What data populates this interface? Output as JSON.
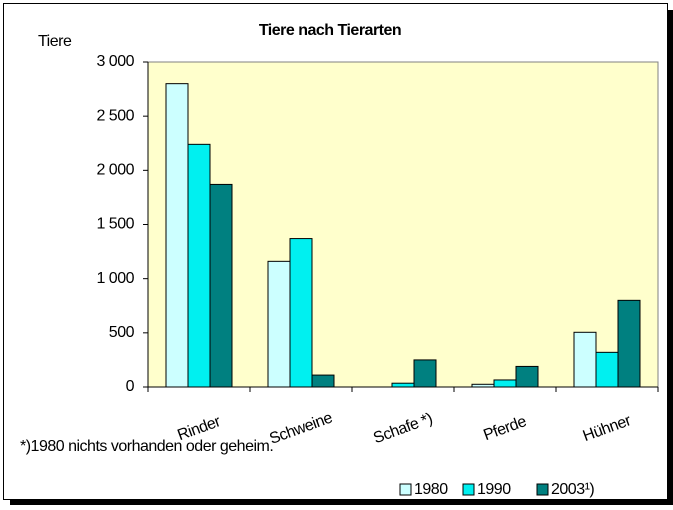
{
  "chart_data": {
    "type": "bar",
    "title": "Tiere nach Tierarten",
    "y_label": "Tiere",
    "note": "*)1980 nichts vorhanden oder geheim.",
    "categories": [
      "Rinder",
      "Schweine",
      "Schafe *)",
      "Pferde",
      "Hühner"
    ],
    "series": [
      {
        "name": "1980",
        "color": "#ccffff",
        "values": [
          2800,
          1160,
          null,
          25,
          505
        ]
      },
      {
        "name": "1990",
        "color": "#00f0f0",
        "values": [
          2240,
          1370,
          35,
          65,
          320
        ]
      },
      {
        "name": "2003¹)",
        "color": "#008080",
        "values": [
          1870,
          110,
          250,
          190,
          800
        ]
      }
    ],
    "ylim": [
      0,
      3000
    ],
    "yticks": [
      0,
      500,
      {
        "value": 1000,
        "label": "1 000"
      },
      {
        "value": 1500,
        "label": "1 500"
      },
      {
        "value": 2000,
        "label": "2 000"
      },
      {
        "value": 2500,
        "label": "2 500"
      },
      {
        "value": 3000,
        "label": "3 000"
      }
    ],
    "plot_background": "#ffffcc",
    "legend": "bottom-right"
  }
}
